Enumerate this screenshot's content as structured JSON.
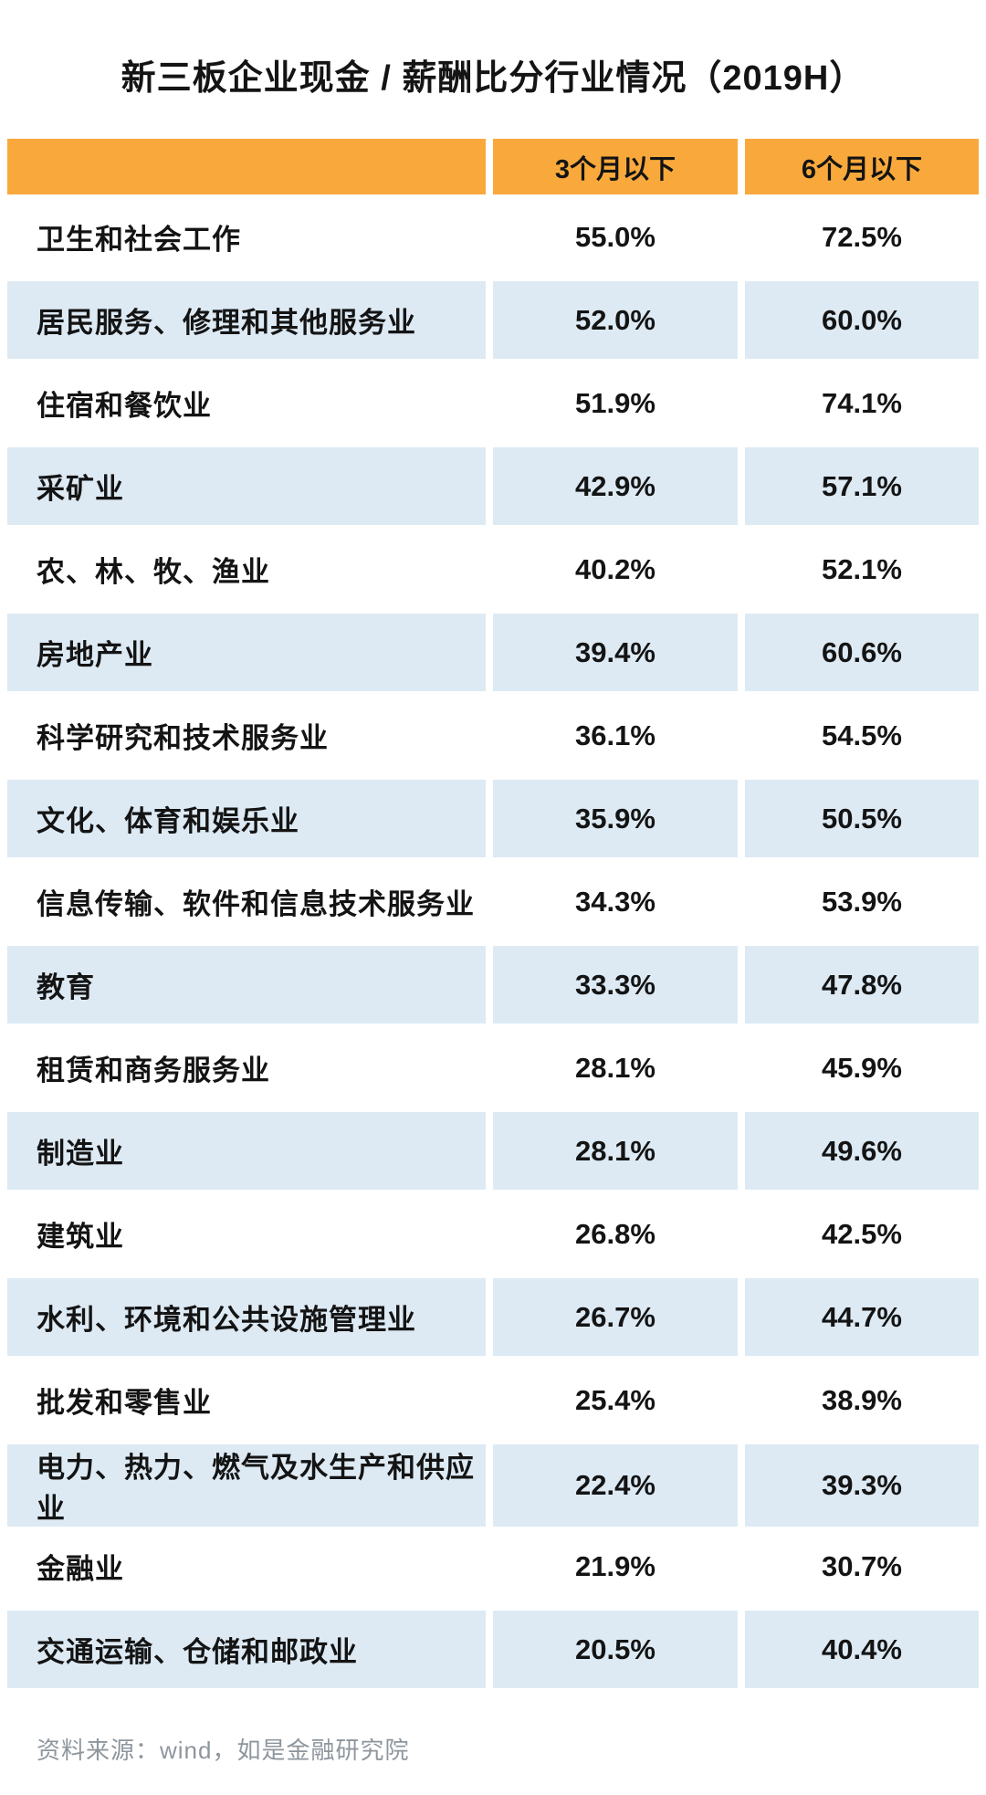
{
  "title": "新三板企业现金 / 薪酬比分行业情况（2019H）",
  "colors": {
    "header_bg": "#F9A93C",
    "row_alt_bg": "#DDEAF4",
    "text": "#141414",
    "footer_text": "#8E969D"
  },
  "footer": {
    "source": "资料来源：wind，如是金融研究院"
  },
  "chart_data": {
    "type": "table",
    "title": "新三板企业现金 / 薪酬比分行业情况（2019H）",
    "columns": [
      "3个月以下",
      "6个月以下"
    ],
    "rows": [
      {
        "industry": "卫生和社会工作",
        "under_3_months": "55.0%",
        "under_6_months": "72.5%"
      },
      {
        "industry": "居民服务、修理和其他服务业",
        "under_3_months": "52.0%",
        "under_6_months": "60.0%"
      },
      {
        "industry": "住宿和餐饮业",
        "under_3_months": "51.9%",
        "under_6_months": "74.1%"
      },
      {
        "industry": "采矿业",
        "under_3_months": "42.9%",
        "under_6_months": "57.1%"
      },
      {
        "industry": "农、林、牧、渔业",
        "under_3_months": "40.2%",
        "under_6_months": "52.1%"
      },
      {
        "industry": "房地产业",
        "under_3_months": "39.4%",
        "under_6_months": "60.6%"
      },
      {
        "industry": "科学研究和技术服务业",
        "under_3_months": "36.1%",
        "under_6_months": "54.5%"
      },
      {
        "industry": "文化、体育和娱乐业",
        "under_3_months": "35.9%",
        "under_6_months": "50.5%"
      },
      {
        "industry": "信息传输、软件和信息技术服务业",
        "under_3_months": "34.3%",
        "under_6_months": "53.9%"
      },
      {
        "industry": "教育",
        "under_3_months": "33.3%",
        "under_6_months": "47.8%"
      },
      {
        "industry": "租赁和商务服务业",
        "under_3_months": "28.1%",
        "under_6_months": "45.9%"
      },
      {
        "industry": "制造业",
        "under_3_months": "28.1%",
        "under_6_months": "49.6%"
      },
      {
        "industry": "建筑业",
        "under_3_months": "26.8%",
        "under_6_months": "42.5%"
      },
      {
        "industry": "水利、环境和公共设施管理业",
        "under_3_months": "26.7%",
        "under_6_months": "44.7%"
      },
      {
        "industry": "批发和零售业",
        "under_3_months": "25.4%",
        "under_6_months": "38.9%"
      },
      {
        "industry": "电力、热力、燃气及水生产和供应业",
        "under_3_months": "22.4%",
        "under_6_months": "39.3%"
      },
      {
        "industry": "金融业",
        "under_3_months": "21.9%",
        "under_6_months": "30.7%"
      },
      {
        "industry": "交通运输、仓储和邮政业",
        "under_3_months": "20.5%",
        "under_6_months": "40.4%"
      }
    ]
  }
}
